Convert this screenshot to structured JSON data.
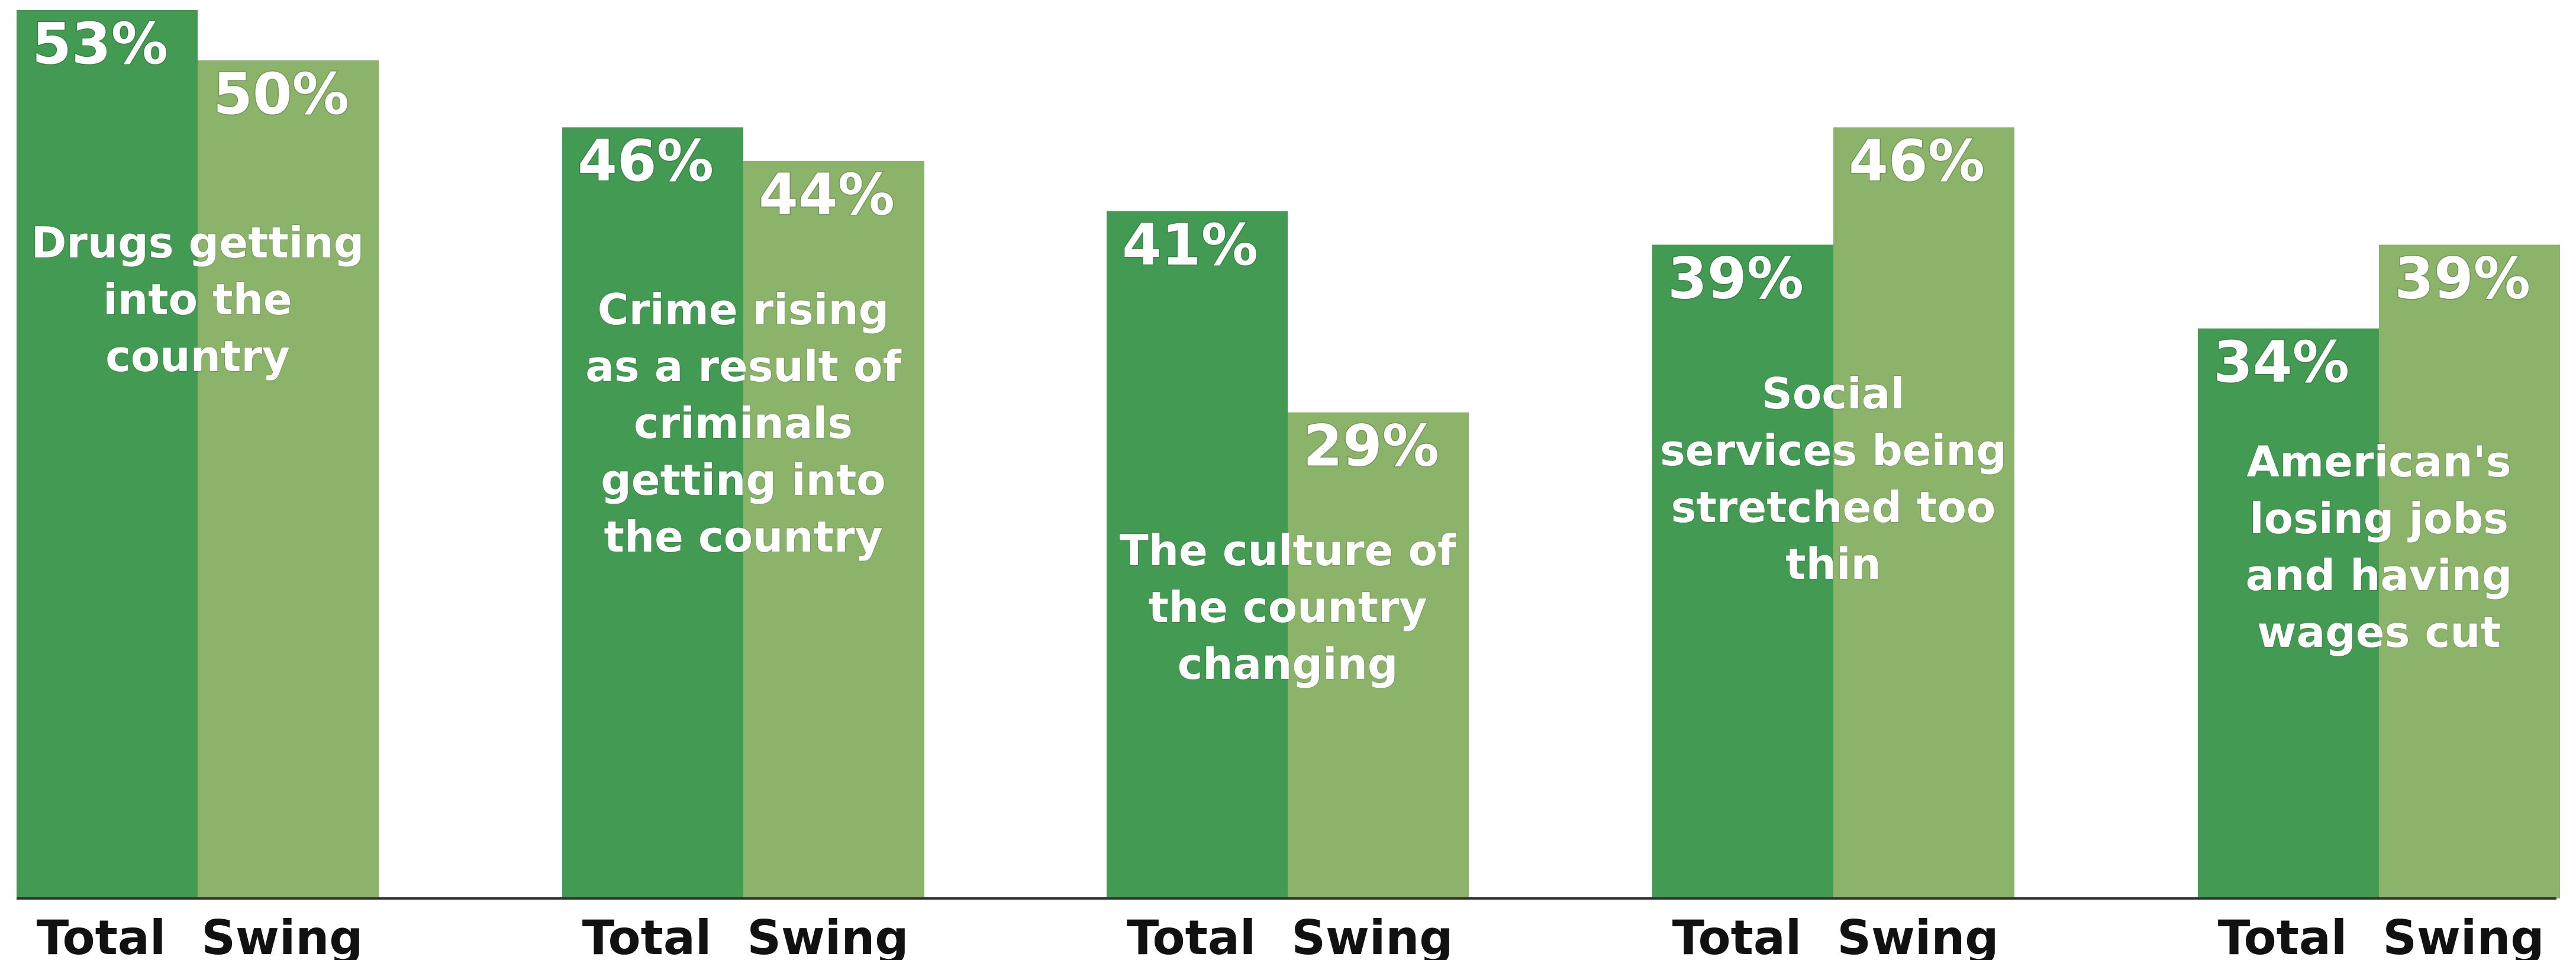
{
  "chart_data": {
    "type": "bar",
    "categories": [
      [
        "Drugs getting",
        "into the",
        "country"
      ],
      [
        "Crime rising",
        "as a result of",
        "criminals",
        "getting into",
        "the country"
      ],
      [
        "The culture of",
        "the country",
        "changing"
      ],
      [
        "Social",
        "services being",
        "stretched too",
        "thin"
      ],
      [
        "American's",
        "losing jobs",
        "and having",
        "wages cut"
      ]
    ],
    "series": [
      {
        "name": "Total",
        "values": [
          53,
          46,
          41,
          39,
          34
        ],
        "labels": [
          "53%",
          "46%",
          "41%",
          "39%",
          "34%"
        ]
      },
      {
        "name": "Swing",
        "values": [
          50,
          44,
          29,
          46,
          39
        ],
        "labels": [
          "50%",
          "44%",
          "29%",
          "46%",
          "39%"
        ]
      }
    ],
    "ylim": [
      0,
      53
    ],
    "grid": false,
    "legend": "none",
    "colors": {
      "Total": "#439b53",
      "Swing": "#8bb36a",
      "axis": "#333333"
    }
  }
}
